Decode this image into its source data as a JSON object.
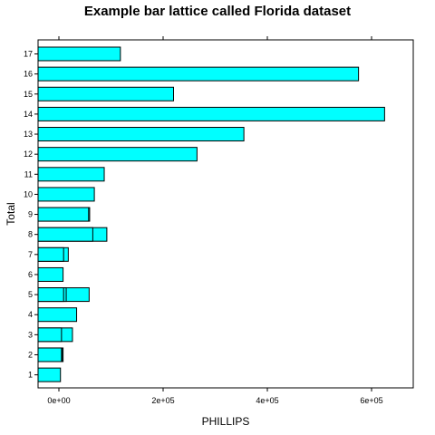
{
  "chart_data": {
    "type": "bar",
    "orientation": "horizontal",
    "title": "Example bar lattice called Florida dataset",
    "xlabel": "PHILLIPS",
    "ylabel": "Total",
    "xlim": [
      -40000,
      675000
    ],
    "x_ticks": [
      0,
      200000,
      400000,
      600000
    ],
    "x_tick_labels": [
      "0e+00",
      "2e+05",
      "4e+05",
      "6e+05"
    ],
    "categories": [
      "1",
      "2",
      "3",
      "4",
      "5",
      "6",
      "7",
      "8",
      "9",
      "10",
      "11",
      "12",
      "13",
      "14",
      "15",
      "16",
      "17"
    ],
    "bars": [
      {
        "category": "1",
        "value": 3000
      },
      {
        "category": "2",
        "value": 5000
      },
      {
        "category": "2",
        "value": 6000
      },
      {
        "category": "2",
        "value": 8000
      },
      {
        "category": "3",
        "value": 5000
      },
      {
        "category": "3",
        "value": 26000
      },
      {
        "category": "4",
        "value": 34000
      },
      {
        "category": "5",
        "value": 9000
      },
      {
        "category": "5",
        "value": 14000
      },
      {
        "category": "5",
        "value": 58000
      },
      {
        "category": "6",
        "value": 8000
      },
      {
        "category": "7",
        "value": 9000
      },
      {
        "category": "7",
        "value": 18000
      },
      {
        "category": "8",
        "value": 65000
      },
      {
        "category": "8",
        "value": 92000
      },
      {
        "category": "9",
        "value": 57000
      },
      {
        "category": "9",
        "value": 59000
      },
      {
        "category": "10",
        "value": 68000
      },
      {
        "category": "11",
        "value": 87000
      },
      {
        "category": "12",
        "value": 265000
      },
      {
        "category": "13",
        "value": 355000
      },
      {
        "category": "14",
        "value": 625000
      },
      {
        "category": "15",
        "value": 220000
      },
      {
        "category": "16",
        "value": 575000
      },
      {
        "category": "17",
        "value": 118000
      }
    ],
    "bar_fill": "#00ffff",
    "bar_stroke": "#000000",
    "grid": false,
    "ticks_on_top": true
  }
}
